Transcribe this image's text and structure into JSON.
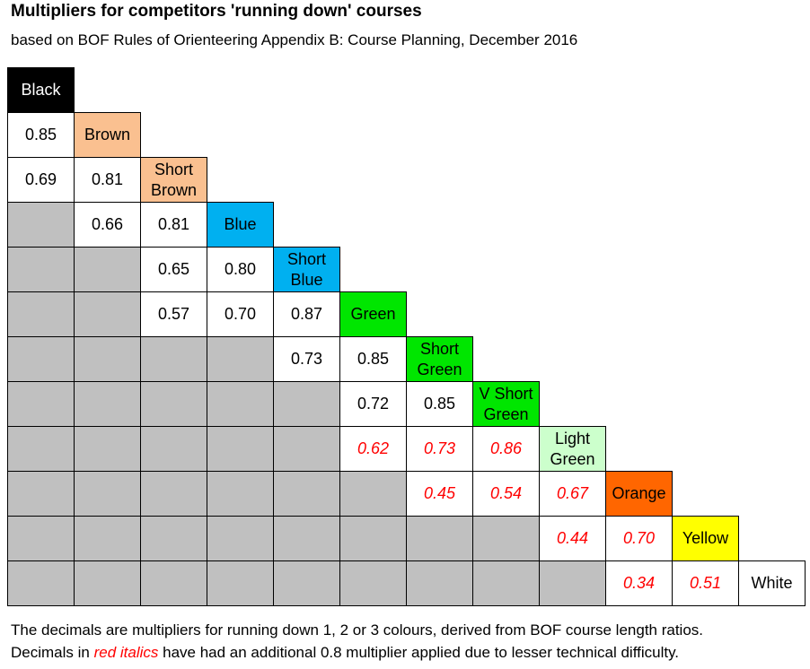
{
  "title": "Multipliers for competitors 'running down' courses",
  "subtitle": "based on BOF Rules of Orienteering Appendix B: Course Planning, December 2016",
  "courses": [
    {
      "name": "Black",
      "color": "#000000",
      "text_color": "#ffffff"
    },
    {
      "name": "Brown",
      "color": "#fac090",
      "text_color": "#000000"
    },
    {
      "name": "Short Brown",
      "color": "#fac090",
      "text_color": "#000000"
    },
    {
      "name": "Blue",
      "color": "#00b0f0",
      "text_color": "#000000"
    },
    {
      "name": "Short Blue",
      "color": "#00b0f0",
      "text_color": "#000000"
    },
    {
      "name": "Green",
      "color": "#00e600",
      "text_color": "#000000"
    },
    {
      "name": "Short Green",
      "color": "#00e600",
      "text_color": "#000000"
    },
    {
      "name": "V Short Green",
      "color": "#00e600",
      "text_color": "#000000"
    },
    {
      "name": "Light Green",
      "color": "#ccffcc",
      "text_color": "#000000"
    },
    {
      "name": "Orange",
      "color": "#ff6600",
      "text_color": "#000000"
    },
    {
      "name": "Yellow",
      "color": "#ffff00",
      "text_color": "#000000"
    },
    {
      "name": "White",
      "color": "#ffffff",
      "text_color": "#000000"
    }
  ],
  "rows": [
    [],
    [
      {
        "value": "0.85",
        "reduced": false
      }
    ],
    [
      {
        "value": "0.69",
        "reduced": false
      },
      {
        "value": "0.81",
        "reduced": false
      }
    ],
    [
      null,
      {
        "value": "0.66",
        "reduced": false
      },
      {
        "value": "0.81",
        "reduced": false
      }
    ],
    [
      null,
      null,
      {
        "value": "0.65",
        "reduced": false
      },
      {
        "value": "0.80",
        "reduced": false
      }
    ],
    [
      null,
      null,
      {
        "value": "0.57",
        "reduced": false
      },
      {
        "value": "0.70",
        "reduced": false
      },
      {
        "value": "0.87",
        "reduced": false
      }
    ],
    [
      null,
      null,
      null,
      null,
      {
        "value": "0.73",
        "reduced": false
      },
      {
        "value": "0.85",
        "reduced": false
      }
    ],
    [
      null,
      null,
      null,
      null,
      null,
      {
        "value": "0.72",
        "reduced": false
      },
      {
        "value": "0.85",
        "reduced": false
      }
    ],
    [
      null,
      null,
      null,
      null,
      null,
      {
        "value": "0.62",
        "reduced": true
      },
      {
        "value": "0.73",
        "reduced": true
      },
      {
        "value": "0.86",
        "reduced": true
      }
    ],
    [
      null,
      null,
      null,
      null,
      null,
      null,
      {
        "value": "0.45",
        "reduced": true
      },
      {
        "value": "0.54",
        "reduced": true
      },
      {
        "value": "0.67",
        "reduced": true
      }
    ],
    [
      null,
      null,
      null,
      null,
      null,
      null,
      null,
      null,
      {
        "value": "0.44",
        "reduced": true
      },
      {
        "value": "0.70",
        "reduced": true
      }
    ],
    [
      null,
      null,
      null,
      null,
      null,
      null,
      null,
      null,
      null,
      {
        "value": "0.34",
        "reduced": true
      },
      {
        "value": "0.51",
        "reduced": true
      }
    ]
  ],
  "empty_color": "#c0c0c0",
  "reduced_color": "#ff0000",
  "footer": {
    "line1": "The decimals are multipliers for running down 1, 2 or 3 colours, derived from BOF course length ratios.",
    "line2_before": "Decimals in ",
    "line2_emphasis": "red italics",
    "line2_after": " have had an additional 0.8 multiplier applied due to lesser technical difficulty."
  }
}
